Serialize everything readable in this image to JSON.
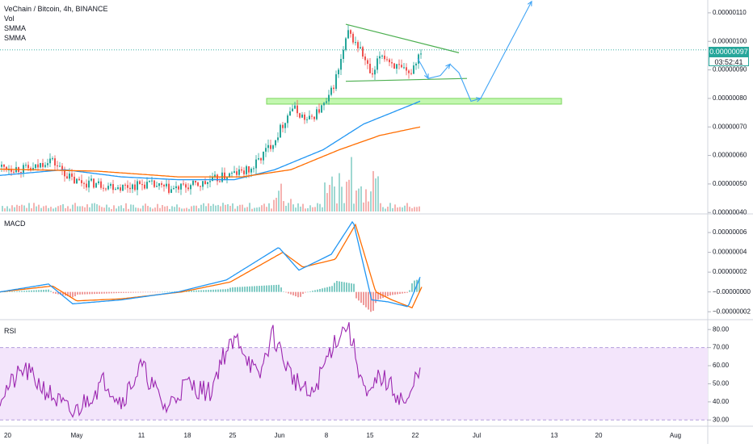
{
  "header": {
    "symbol_line": "VeChain / Bitcoin, 4h, BINANCE",
    "indicator_1": "Vol",
    "indicator_2": "SMMA",
    "indicator_3": "SMMA"
  },
  "price_badge": {
    "price": "0.00000097",
    "countdown": "03:52:41",
    "color": "#26a69a"
  },
  "panes": {
    "macd_label": "MACD",
    "rsi_label": "RSI"
  },
  "colors": {
    "up": "#26a69a",
    "down": "#ef5350",
    "smma_fast": "#2196f3",
    "smma_slow": "#ff6d00",
    "macd_line": "#2196f3",
    "signal_line": "#ff6d00",
    "rsi_line": "#9c27b0",
    "rsi_band": "#f3e5fb",
    "support_zone": "#b9f6a2",
    "pattern_lines": "#4caf50",
    "projection": "#42a5f5"
  },
  "chart_data": [
    {
      "id": "price",
      "type": "candlestick",
      "x_start_label": "20",
      "time_ticks": [
        "20",
        "May",
        "11",
        "18",
        "25",
        "Jun",
        "8",
        "15",
        "22",
        "Jul",
        "13",
        "20",
        "Aug"
      ],
      "y_ticks": [
        "0.00000110",
        "0.00000100",
        "0.00000090",
        "0.00000080",
        "0.00000070",
        "0.00000060",
        "0.00000050",
        "0.00000040"
      ],
      "ylim": [
        3.95e-07,
        1.145e-06
      ],
      "last_price": 9.7e-07,
      "close_anchors": [
        [
          0,
          5.6e-07
        ],
        [
          40,
          5.5e-07
        ],
        [
          60,
          5.9e-07
        ],
        [
          90,
          5.1e-07
        ],
        [
          120,
          5e-07
        ],
        [
          150,
          4.9e-07
        ],
        [
          180,
          5e-07
        ],
        [
          210,
          4.8e-07
        ],
        [
          250,
          5e-07
        ],
        [
          280,
          5.3e-07
        ],
        [
          310,
          5.5e-07
        ],
        [
          340,
          6.6e-07
        ],
        [
          360,
          7.7e-07
        ],
        [
          380,
          7.2e-07
        ],
        [
          405,
          7.9e-07
        ],
        [
          418,
          9e-07
        ],
        [
          430,
          1.03e-06
        ],
        [
          445,
          9.7e-07
        ],
        [
          460,
          8.7e-07
        ],
        [
          470,
          9.6e-07
        ],
        [
          490,
          9.1e-07
        ],
        [
          505,
          8.8e-07
        ],
        [
          520,
          9.7e-07
        ]
      ],
      "smma_fast_anchors": [
        [
          0,
          5.3e-07
        ],
        [
          80,
          5.5e-07
        ],
        [
          150,
          5.25e-07
        ],
        [
          220,
          5.15e-07
        ],
        [
          290,
          5.15e-07
        ],
        [
          340,
          5.5e-07
        ],
        [
          400,
          6.2e-07
        ],
        [
          450,
          7.1e-07
        ],
        [
          520,
          7.9e-07
        ]
      ],
      "smma_slow_anchors": [
        [
          0,
          5.52e-07
        ],
        [
          120,
          5.45e-07
        ],
        [
          220,
          5.25e-07
        ],
        [
          300,
          5.25e-07
        ],
        [
          360,
          5.5e-07
        ],
        [
          420,
          6.2e-07
        ],
        [
          470,
          6.7e-07
        ],
        [
          520,
          7e-07
        ]
      ],
      "support_zone": [
        7.8e-07,
        8e-07
      ],
      "triangle_upper": [
        [
          428,
          1.06e-06
        ],
        [
          568,
          9.6e-07
        ]
      ],
      "triangle_lower": [
        [
          428,
          8.6e-07
        ],
        [
          578,
          8.7e-07
        ]
      ],
      "projection_path": [
        [
          517,
          9.4e-07
        ],
        [
          525,
          9e-07
        ],
        [
          530,
          8.7e-07
        ],
        [
          545,
          8.8e-07
        ],
        [
          557,
          9.2e-07
        ],
        [
          568,
          8.9e-07
        ],
        [
          583,
          7.9e-07
        ],
        [
          595,
          8e-07
        ],
        [
          658,
          1.14e-06
        ]
      ]
    },
    {
      "id": "macd",
      "type": "line",
      "y_ticks": [
        "0.00000006",
        "0.00000004",
        "0.00000002",
        "−0.00000000",
        "−0.00000002"
      ],
      "ylim": [
        -2.8e-08,
        7.8e-08
      ],
      "macd_anchors": [
        [
          0,
          0.0
        ],
        [
          60,
          8e-09
        ],
        [
          90,
          -1.2e-08
        ],
        [
          150,
          -8e-09
        ],
        [
          220,
          0.0
        ],
        [
          280,
          1.2e-08
        ],
        [
          345,
          4.5e-08
        ],
        [
          370,
          2.2e-08
        ],
        [
          410,
          3.8e-08
        ],
        [
          437,
          7.2e-08
        ],
        [
          460,
          -8e-09
        ],
        [
          480,
          -1e-08
        ],
        [
          505,
          -1.5e-08
        ],
        [
          520,
          1.5e-08
        ]
      ],
      "signal_anchors": [
        [
          0,
          0.0
        ],
        [
          65,
          6e-09
        ],
        [
          95,
          -9e-09
        ],
        [
          150,
          -7e-09
        ],
        [
          225,
          0.0
        ],
        [
          285,
          1e-08
        ],
        [
          350,
          4e-08
        ],
        [
          375,
          2.5e-08
        ],
        [
          415,
          3.3e-08
        ],
        [
          440,
          6.8e-08
        ],
        [
          465,
          0.0
        ],
        [
          485,
          -8e-09
        ],
        [
          510,
          -1.6e-08
        ],
        [
          522,
          5e-09
        ]
      ]
    },
    {
      "id": "rsi",
      "type": "line",
      "y_ticks": [
        "80.00",
        "70.00",
        "60.00",
        "50.00",
        "40.00",
        "30.00"
      ],
      "ylim": [
        27,
        85
      ],
      "band": [
        30,
        70
      ],
      "rsi_anchors": [
        [
          0,
          43
        ],
        [
          30,
          58
        ],
        [
          60,
          45
        ],
        [
          90,
          33
        ],
        [
          130,
          52
        ],
        [
          150,
          40
        ],
        [
          175,
          60
        ],
        [
          205,
          36
        ],
        [
          230,
          50
        ],
        [
          260,
          45
        ],
        [
          275,
          65
        ],
        [
          295,
          75
        ],
        [
          320,
          52
        ],
        [
          337,
          78
        ],
        [
          360,
          55
        ],
        [
          385,
          42
        ],
        [
          412,
          72
        ],
        [
          430,
          83
        ],
        [
          455,
          40
        ],
        [
          470,
          55
        ],
        [
          490,
          45
        ],
        [
          505,
          38
        ],
        [
          520,
          62
        ]
      ]
    }
  ]
}
